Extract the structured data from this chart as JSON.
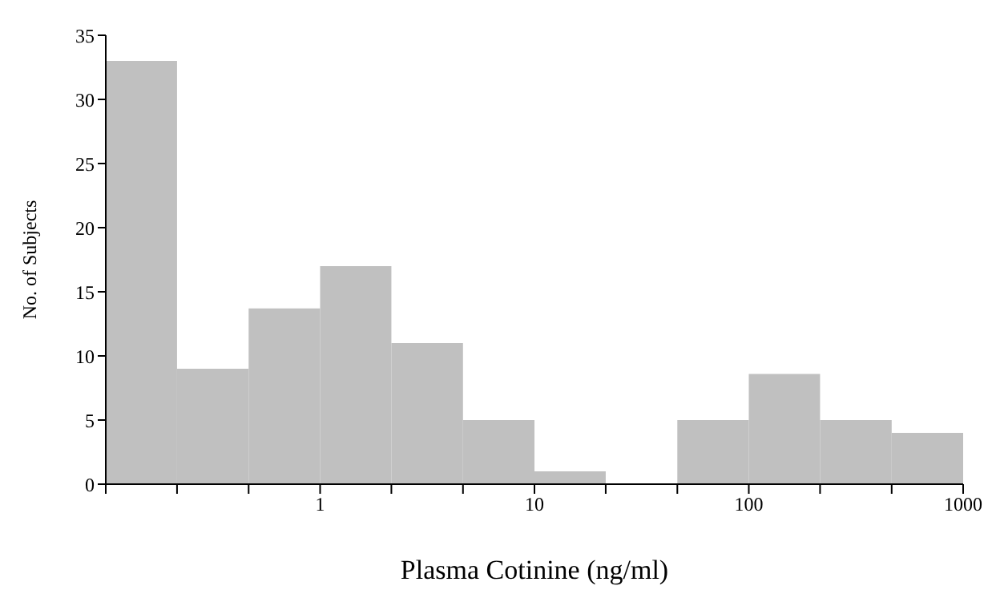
{
  "chart_data": {
    "type": "histogram",
    "xlabel": "Plasma Cotinine (ng/ml)",
    "ylabel": "No. of Subjects",
    "color": "#c0c0c0",
    "log": "x",
    "bins": [
      0.1,
      0.215,
      0.464,
      1,
      2.15,
      4.64,
      10,
      21.5,
      46.4,
      100,
      215,
      464,
      1000
    ],
    "values": [
      33,
      9,
      13.7,
      17,
      11,
      5,
      1,
      0,
      5,
      8.6,
      5,
      4
    ],
    "xlim": [
      0.1,
      1000
    ],
    "xticks": [
      {
        "value": 0.1,
        "label": null
      },
      {
        "value": 0.215,
        "label": null
      },
      {
        "value": 0.464,
        "label": null
      },
      1,
      {
        "value": 2.15,
        "label": null
      },
      {
        "value": 4.64,
        "label": null
      },
      10,
      {
        "value": 21.5,
        "label": null
      },
      {
        "value": 46.4,
        "label": null
      },
      100,
      {
        "value": 215,
        "label": null
      },
      {
        "value": 464,
        "label": null
      },
      1000
    ],
    "ylim": [
      0,
      35
    ],
    "yticks": [
      0,
      5,
      10,
      15,
      20,
      25,
      30,
      35
    ]
  }
}
